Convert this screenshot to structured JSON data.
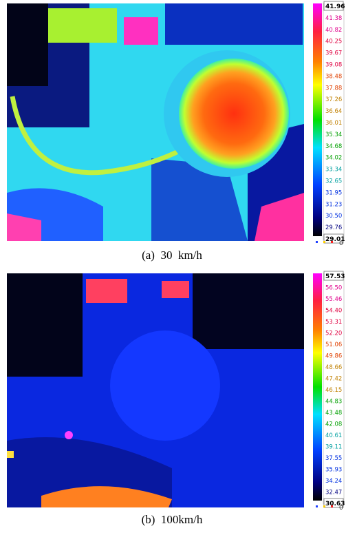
{
  "panels": [
    {
      "caption": "(a)  30  km/h",
      "scale_labels": [
        "41.96",
        "41.38",
        "40.82",
        "40.25",
        "39.67",
        "39.08",
        "38.48",
        "37.88",
        "37.26",
        "36.64",
        "36.01",
        "35.34",
        "34.68",
        "34.02",
        "33.34",
        "32.65",
        "31.95",
        "31.23",
        "30.50",
        "29.76",
        "29.01"
      ],
      "zero_label": "0"
    },
    {
      "caption": "(b)  100km/h",
      "scale_labels": [
        "57.53",
        "56.50",
        "55.46",
        "54.40",
        "53.31",
        "52.20",
        "51.06",
        "49.86",
        "48.66",
        "47.42",
        "46.15",
        "44.83",
        "43.48",
        "42.08",
        "40.61",
        "39.11",
        "37.55",
        "35.93",
        "34.24",
        "32.47",
        "30.63"
      ],
      "zero_label": "0"
    }
  ]
}
